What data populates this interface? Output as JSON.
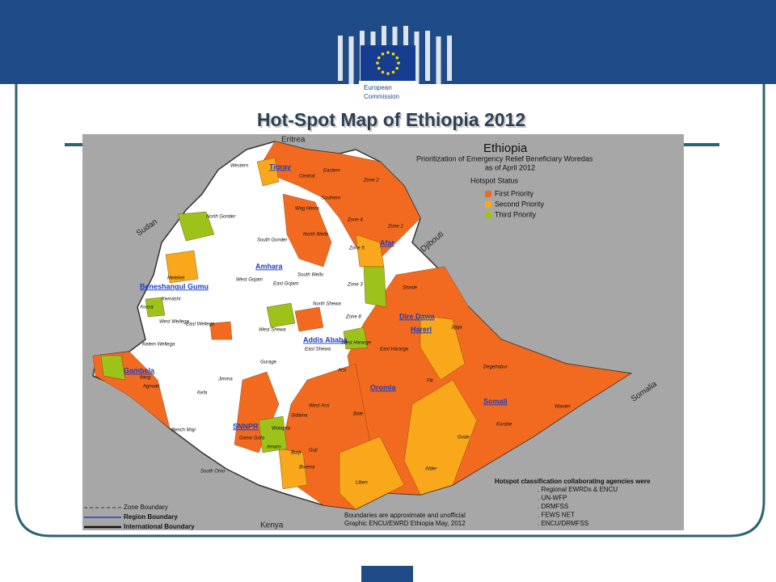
{
  "header": {
    "org_line1": "European",
    "org_line2": "Commission"
  },
  "title": "Hot-Spot Map of Ethiopia 2012",
  "map": {
    "title": "Ethiopia",
    "subtitle_line1": "Prioritization of Emergency Relief Beneficiary Woredas",
    "subtitle_line2": "as of April 2012",
    "legend_title": "Hotspot Status",
    "legend": [
      {
        "label": "First Priority",
        "color": "#f26a1f"
      },
      {
        "label": "Second Priority",
        "color": "#f9a81b"
      },
      {
        "label": "Third Priority",
        "color": "#9dc31b"
      }
    ],
    "countries": [
      "Eritrea",
      "Sudan",
      "Djibouti",
      "Somalia",
      "Kenya"
    ],
    "regions": [
      "Tigray",
      "Afar",
      "Amhara",
      "Beneshangul Gumu",
      "Dire Dawa",
      "Hareri",
      "Addis Ababa",
      "Gambela",
      "Oromia",
      "SNNPR",
      "Somali"
    ],
    "zones": [
      "Western",
      "Central",
      "Eastern",
      "Southern",
      "Zone 2",
      "Zone 4",
      "Zone 1",
      "Wag Himra",
      "North Wello",
      "South Wello",
      "North Gonder",
      "South Gonder",
      "West Gojam",
      "East Gojam",
      "Metekel",
      "Kemashi",
      "Asosa",
      "Shinile",
      "Jijiga",
      "Degehabur",
      "Fik",
      "Warder",
      "Korahe",
      "Gode",
      "Afder",
      "Liben",
      "Borena",
      "Bale",
      "Arsi",
      "West Arsi",
      "Guji",
      "Jimma",
      "Kefa",
      "Bench Maji",
      "South Omo",
      "Agnuak",
      "Itang",
      "West Wellega",
      "East Wellega",
      "Kelem Wellega",
      "West Shewa",
      "East Shewa",
      "North Shewa",
      "Zone 3",
      "Zone 5",
      "West Hararge",
      "East Hararge",
      "Gurage",
      "Sidama",
      "Wolayita",
      "Gamo Gofa",
      "Amaro",
      "Burji",
      "Zone 8"
    ],
    "boundaries": [
      "Zone Boundary",
      "Region Boundary",
      "International Boundary"
    ],
    "note_line1": "Boundaries are approximate and unofficial",
    "note_line2": "Graphic ENCU/EWRD Ethiopia May, 2012",
    "agencies": {
      "title": "Hotspot classification collaborating agencies were",
      "items": [
        ". Regional EWRDs & ENCU",
        ". UN-WFP",
        ". DRMFSS",
        ". FEWS NET",
        ". ENCU/DRMFSS"
      ]
    }
  }
}
